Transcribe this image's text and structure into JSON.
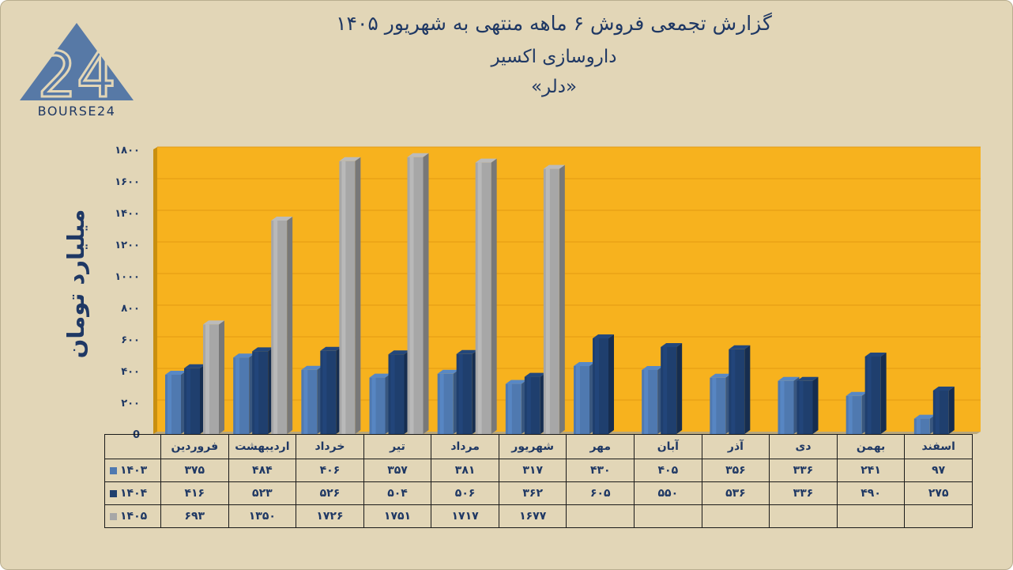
{
  "header": {
    "title_line1": "گزارش تجمعی فروش ۶ ماهه منتهی به شهریور ۱۴۰۵",
    "title_line2": "داروسازی اکسیر",
    "title_line3": "«دلر»"
  },
  "logo": {
    "text": "BOURSE24",
    "mark": "24"
  },
  "colors": {
    "background": "#e2d6b7",
    "plot_area": "#f7b21e",
    "series_1403": "#4f79b0",
    "series_1404": "#1f3f6e",
    "series_1405": "#a7a7a7",
    "text": "#1f3864"
  },
  "chart_data": {
    "type": "bar",
    "ylabel": "میلیارد تومان",
    "xlabel": "",
    "ylim": [
      0,
      1800
    ],
    "yticks": [
      "0",
      "۲۰۰",
      "۴۰۰",
      "۶۰۰",
      "۸۰۰",
      "۱۰۰۰",
      "۱۲۰۰",
      "۱۴۰۰",
      "۱۶۰۰",
      "۱۸۰۰"
    ],
    "ytick_values": [
      0,
      200,
      400,
      600,
      800,
      1000,
      1200,
      1400,
      1600,
      1800
    ],
    "grid": true,
    "legend": "table-bottom",
    "categories": [
      "فروردین",
      "اردیبهشت",
      "خرداد",
      "تیر",
      "مرداد",
      "شهریور",
      "مهر",
      "آبان",
      "آذر",
      "دی",
      "بهمن",
      "اسفند"
    ],
    "series": [
      {
        "name": "۱۴۰۳",
        "values": [
          375,
          484,
          406,
          357,
          381,
          317,
          430,
          405,
          356,
          336,
          241,
          97
        ],
        "labels": [
          "۳۷۵",
          "۴۸۴",
          "۴۰۶",
          "۳۵۷",
          "۳۸۱",
          "۳۱۷",
          "۴۳۰",
          "۴۰۵",
          "۳۵۶",
          "۳۳۶",
          "۲۴۱",
          "۹۷"
        ]
      },
      {
        "name": "۱۴۰۴",
        "values": [
          416,
          523,
          526,
          504,
          506,
          362,
          605,
          550,
          536,
          336,
          490,
          275
        ],
        "labels": [
          "۴۱۶",
          "۵۲۳",
          "۵۲۶",
          "۵۰۴",
          "۵۰۶",
          "۳۶۲",
          "۶۰۵",
          "۵۵۰",
          "۵۳۶",
          "۳۳۶",
          "۴۹۰",
          "۲۷۵"
        ]
      },
      {
        "name": "۱۴۰۵",
        "values": [
          693,
          1350,
          1726,
          1751,
          1717,
          1677,
          null,
          null,
          null,
          null,
          null,
          null
        ],
        "labels": [
          "۶۹۳",
          "۱۳۵۰",
          "۱۷۲۶",
          "۱۷۵۱",
          "۱۷۱۷",
          "۱۶۷۷",
          "",
          "",
          "",
          "",
          "",
          ""
        ]
      }
    ]
  }
}
